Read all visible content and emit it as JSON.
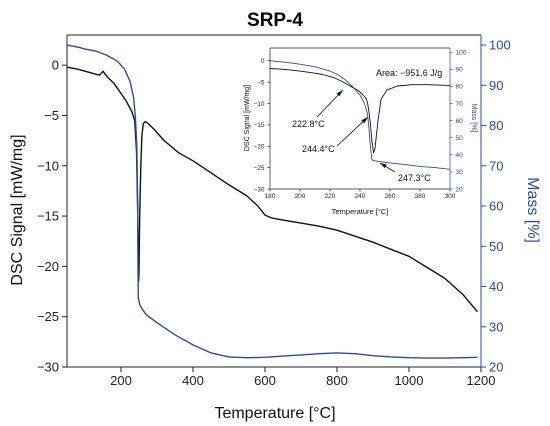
{
  "chart_data": [
    {
      "type": "line",
      "title": "SRP-4",
      "xlabel": "Temperature [°C]",
      "ylabel_left": "DSC Signal [mW/mg]",
      "ylabel_right": "Mass [%]",
      "xlim": [
        50,
        1200
      ],
      "ylim_left": [
        -30,
        3
      ],
      "ylim_right": [
        20,
        102.5
      ],
      "x_ticks": [
        200,
        400,
        600,
        800,
        1000,
        1200
      ],
      "y_ticks_left": [
        0,
        -5,
        -10,
        -15,
        -20,
        -25,
        -30
      ],
      "y_ticks_right": [
        20,
        30,
        40,
        50,
        60,
        70,
        80,
        90,
        100
      ],
      "colors": {
        "dsc": "#111111",
        "mass": "#2b4c9b"
      },
      "series": [
        {
          "axis": "left",
          "x": [
            50,
            80,
            100,
            120,
            140,
            150,
            160,
            180,
            200,
            215,
            230,
            238,
            243,
            246,
            248,
            249,
            250,
            252,
            255,
            258,
            262,
            268,
            275,
            290,
            320,
            360,
            400,
            450,
            500,
            550,
            580,
            600,
            620,
            650,
            700,
            750,
            800,
            850,
            900,
            950,
            1000,
            1050,
            1100,
            1150,
            1190
          ],
          "y": [
            -0.2,
            -0.4,
            -0.6,
            -0.8,
            -1.0,
            -0.6,
            -1.1,
            -1.8,
            -2.8,
            -3.6,
            -4.6,
            -5.5,
            -8.5,
            -14,
            -19,
            -21.5,
            -20.5,
            -15,
            -10,
            -7,
            -5.8,
            -5.6,
            -5.8,
            -6.3,
            -7.5,
            -8.7,
            -9.5,
            -10.7,
            -11.9,
            -13.0,
            -14.0,
            -14.9,
            -15.2,
            -15.4,
            -15.7,
            -16.0,
            -16.4,
            -17.0,
            -17.6,
            -18.3,
            -19.0,
            -20.1,
            -21.2,
            -22.8,
            -24.5
          ]
        },
        {
          "axis": "right",
          "x": [
            50,
            80,
            100,
            130,
            160,
            190,
            210,
            225,
            235,
            240,
            244,
            246,
            247,
            248,
            250,
            252,
            258,
            270,
            300,
            350,
            400,
            450,
            500,
            550,
            600,
            650,
            700,
            750,
            800,
            850,
            900,
            950,
            1000,
            1050,
            1100,
            1150,
            1190
          ],
          "y": [
            100,
            99.5,
            99,
            98.5,
            97.5,
            96,
            94,
            91,
            87,
            82,
            75,
            62,
            48,
            37,
            36.5,
            35.5,
            34.5,
            33,
            31,
            28,
            25.5,
            23.5,
            22.5,
            22.3,
            22.4,
            22.7,
            23,
            23.3,
            23.5,
            23.3,
            22.8,
            22.5,
            22.3,
            22.2,
            22.2,
            22.3,
            22.4
          ]
        }
      ]
    },
    {
      "type": "line",
      "xlabel": "Temperature [°C]",
      "ylabel_left": "DSC Signal [mW/mg]",
      "ylabel_right": "Mass [%]",
      "xlim": [
        180,
        300
      ],
      "ylim_left": [
        -30,
        3
      ],
      "ylim_right": [
        20,
        102.5
      ],
      "x_ticks": [
        180,
        200,
        220,
        240,
        260,
        280,
        300
      ],
      "y_ticks_left": [
        0,
        -5,
        -10,
        -15,
        -20,
        -25,
        -30
      ],
      "y_ticks_right": [
        20,
        30,
        40,
        50,
        60,
        70,
        80,
        90,
        100
      ],
      "annotations": [
        "Area: −951.6 J/g",
        "222.8°C",
        "244.4°C",
        "247.3°C"
      ],
      "series": [
        {
          "axis": "left",
          "x": [
            180,
            190,
            200,
            210,
            215,
            220,
            223,
            226,
            230,
            234,
            238,
            240,
            242,
            244,
            245,
            246,
            247,
            248,
            249,
            250,
            252,
            254,
            258,
            265,
            275,
            285,
            295,
            300
          ],
          "y": [
            -1.8,
            -2.0,
            -2.4,
            -2.9,
            -3.2,
            -3.7,
            -4.0,
            -4.5,
            -5.2,
            -6.0,
            -6.8,
            -7.3,
            -8.0,
            -8.8,
            -9.8,
            -12,
            -15,
            -19,
            -21.5,
            -20.5,
            -14,
            -9,
            -6.8,
            -5.9,
            -5.6,
            -5.6,
            -5.7,
            -5.8
          ]
        },
        {
          "axis": "right",
          "x": [
            180,
            190,
            200,
            210,
            220,
            225,
            230,
            235,
            240,
            243,
            245,
            246,
            247,
            248,
            250,
            255,
            260,
            270,
            280,
            290,
            300
          ],
          "y": [
            95,
            94.2,
            93,
            91.5,
            89,
            87,
            84,
            80,
            75,
            70,
            64,
            55,
            44,
            37,
            36.5,
            35.8,
            35.3,
            34.3,
            33.2,
            32.5,
            31.5
          ]
        }
      ]
    }
  ]
}
